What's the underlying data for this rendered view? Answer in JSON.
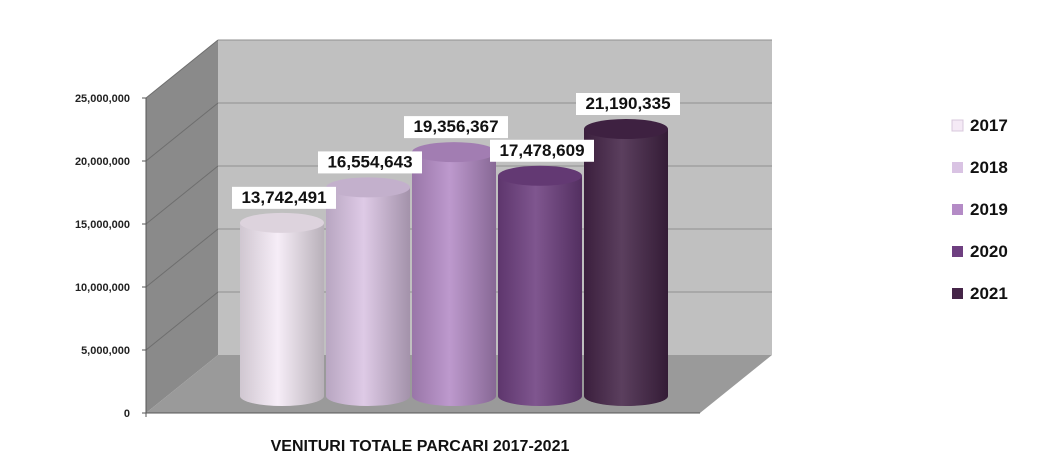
{
  "chart_data": {
    "type": "bar",
    "xlabel": "VENITURI TOTALE PARCARI 2017-2021",
    "ylim": [
      0,
      25000000
    ],
    "y_ticks": [
      "0",
      "5,000,000",
      "10,000,000",
      "15,000,000",
      "20,000,000",
      "25,000,000"
    ],
    "grid": true,
    "legend_position": "right",
    "series": [
      {
        "name": "2017",
        "value": 13742491,
        "label": "13,742,491",
        "color": "#f5eaf6"
      },
      {
        "name": "2018",
        "value": 16554643,
        "label": "16,554,643",
        "color": "#d9c3e3"
      },
      {
        "name": "2019",
        "value": 19356367,
        "label": "19,356,367",
        "color": "#b48bc6"
      },
      {
        "name": "2020",
        "value": 17478609,
        "label": "17,478,609",
        "color": "#6e3f80"
      },
      {
        "name": "2021",
        "value": 21190335,
        "label": "21,190,335",
        "color": "#452548"
      }
    ]
  }
}
